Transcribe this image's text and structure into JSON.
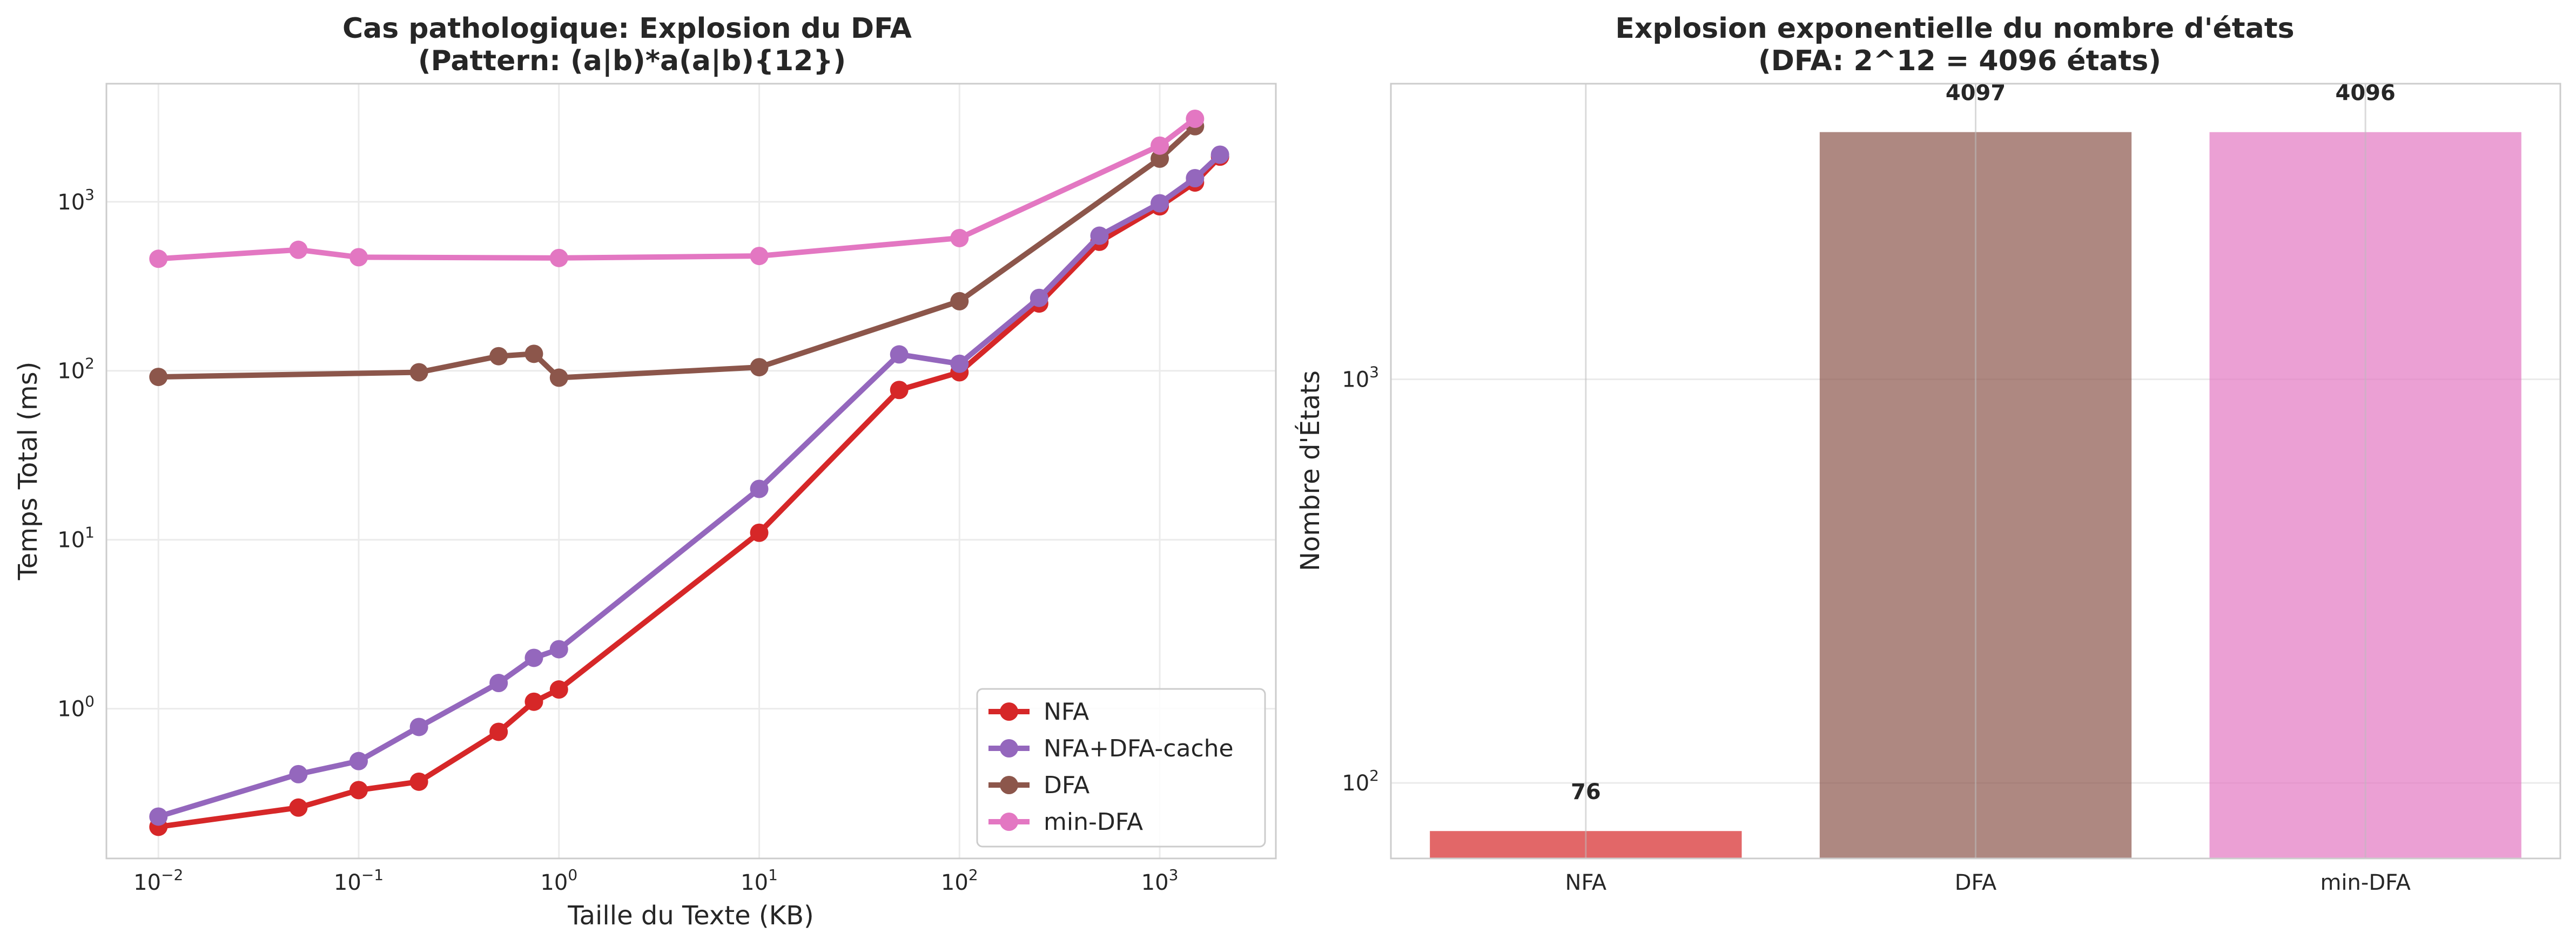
{
  "chart_data": [
    {
      "type": "line",
      "title": "Cas pathologique: Explosion du DFA\n(Pattern: (a|b)*a(a|b){12})",
      "xlabel": "Taille du Texte (KB)",
      "ylabel": "Temps Total (ms)",
      "xscale": "log",
      "yscale": "log",
      "xlim": [
        0.0055,
        3800
      ],
      "ylim": [
        0.13,
        5000
      ],
      "xticks": [
        {
          "value": 0.01,
          "base": "10",
          "exp": "−2"
        },
        {
          "value": 0.1,
          "base": "10",
          "exp": "−1"
        },
        {
          "value": 1,
          "base": "10",
          "exp": "0"
        },
        {
          "value": 10,
          "base": "10",
          "exp": "1"
        },
        {
          "value": 100,
          "base": "10",
          "exp": "2"
        },
        {
          "value": 1000,
          "base": "10",
          "exp": "3"
        }
      ],
      "yticks": [
        {
          "value": 1,
          "base": "10",
          "exp": "0"
        },
        {
          "value": 10,
          "base": "10",
          "exp": "1"
        },
        {
          "value": 100,
          "base": "10",
          "exp": "2"
        },
        {
          "value": 1000,
          "base": "10",
          "exp": "3"
        }
      ],
      "grid": true,
      "legend_position": "lower-right",
      "series": [
        {
          "name": "NFA",
          "color": "#d62728",
          "x": [
            0.01,
            0.05,
            0.1,
            0.2,
            0.5,
            0.75,
            1,
            10,
            50,
            100,
            250,
            500,
            1000,
            1500,
            2000
          ],
          "y": [
            0.2,
            0.26,
            0.33,
            0.37,
            0.73,
            1.1,
            1.3,
            11,
            77,
            98,
            250,
            580,
            940,
            1300,
            1850
          ]
        },
        {
          "name": "NFA+DFA-cache",
          "color": "#9467bd",
          "x": [
            0.01,
            0.05,
            0.1,
            0.2,
            0.5,
            0.75,
            1,
            10,
            50,
            100,
            250,
            500,
            1000,
            1500,
            2000
          ],
          "y": [
            0.23,
            0.41,
            0.49,
            0.78,
            1.42,
            2.0,
            2.25,
            20,
            125,
            110,
            270,
            630,
            980,
            1380,
            1900
          ]
        },
        {
          "name": "DFA",
          "color": "#8c564b",
          "x": [
            0.01,
            0.2,
            0.5,
            0.75,
            1,
            10,
            100,
            1000,
            1500
          ],
          "y": [
            92,
            98,
            122,
            126,
            91,
            105,
            258,
            1800,
            2800
          ]
        },
        {
          "name": "min-DFA",
          "color": "#e377c2",
          "x": [
            0.01,
            0.05,
            0.1,
            1,
            10,
            100,
            1000,
            1500
          ],
          "y": [
            460,
            520,
            470,
            465,
            478,
            610,
            2150,
            3100
          ]
        }
      ]
    },
    {
      "type": "bar",
      "title": "Explosion exponentielle du nombre d'états\n(DFA: 2^12 = 4096 états)",
      "xlabel": "",
      "ylabel": "Nombre d'États",
      "yscale": "log",
      "ylim": [
        65,
        5400
      ],
      "yticks": [
        {
          "value": 100,
          "base": "10",
          "exp": "2"
        },
        {
          "value": 1000,
          "base": "10",
          "exp": "3"
        }
      ],
      "grid": true,
      "categories": [
        "NFA",
        "DFA",
        "min-DFA"
      ],
      "values": [
        76,
        4097,
        4096
      ],
      "data_labels": [
        "76",
        "4097",
        "4096"
      ],
      "colors": [
        "#d62728",
        "#8c564b",
        "#e377c2"
      ]
    }
  ]
}
